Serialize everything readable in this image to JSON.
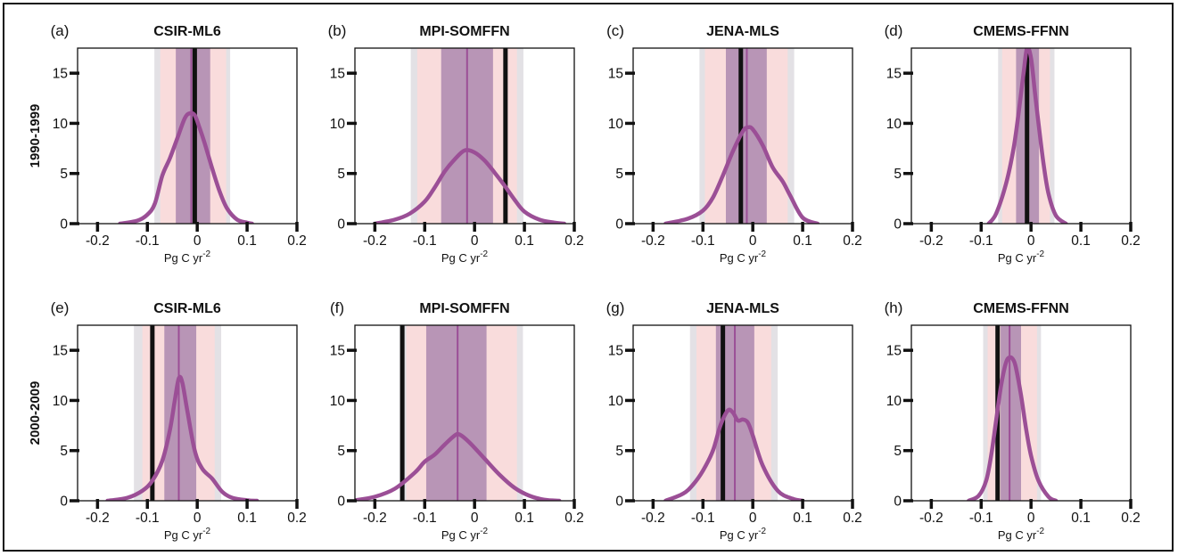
{
  "colors": {
    "curve": "#9b4f96",
    "inner_band": "#b895b6",
    "outer_band": "#f9dcdc",
    "outer_band_grey": "#e3e1e5",
    "obs_line": "#111111",
    "median_line": "#9b4f96"
  },
  "row_labels": [
    "1990-1999",
    "2000-2009"
  ],
  "x_axis_label": {
    "text": "Pg C yr",
    "exp": "-2"
  },
  "chart_data": [
    {
      "type": "area",
      "panel_label": "(a)",
      "title": "CSIR-ML6",
      "row": 0,
      "col": 0,
      "xlim": [
        -0.24,
        0.2
      ],
      "ylim": [
        0,
        17.5
      ],
      "xticks": [
        -0.2,
        -0.1,
        0,
        0.1,
        0.2
      ],
      "xtick_labels": [
        "-0.2",
        "-0.1",
        "0",
        "0.1",
        "0.2"
      ],
      "yticks": [
        0,
        5,
        10,
        15
      ],
      "ytick_labels": [
        "0",
        "5",
        "10",
        "15"
      ],
      "grey_band": [
        -0.086,
        0.066
      ],
      "pink_band": [
        -0.074,
        0.058
      ],
      "inner_band": [
        -0.043,
        0.026
      ],
      "median": -0.012,
      "observed": -0.005,
      "curve": {
        "x": [
          -0.155,
          -0.12,
          -0.1,
          -0.085,
          -0.07,
          -0.055,
          -0.04,
          -0.025,
          -0.015,
          -0.005,
          0.005,
          0.015,
          0.03,
          0.045,
          0.06,
          0.08,
          0.1,
          0.11
        ],
        "y": [
          0,
          0.3,
          0.9,
          2.0,
          4.8,
          6.5,
          8.5,
          10.5,
          11.0,
          10.8,
          9.5,
          8.0,
          5.5,
          3.2,
          1.5,
          0.4,
          0.1,
          0
        ]
      }
    },
    {
      "type": "area",
      "panel_label": "(b)",
      "title": "MPI-SOMFFN",
      "row": 0,
      "col": 1,
      "xlim": [
        -0.24,
        0.2
      ],
      "ylim": [
        0,
        17.5
      ],
      "xticks": [
        -0.2,
        -0.1,
        0,
        0.1,
        0.2
      ],
      "xtick_labels": [
        "-0.2",
        "-0.1",
        "0",
        "0.1",
        "0.2"
      ],
      "yticks": [
        0,
        5,
        10,
        15
      ],
      "ytick_labels": [
        "0",
        "5",
        "10",
        "15"
      ],
      "grey_band": [
        -0.128,
        0.098
      ],
      "pink_band": [
        -0.115,
        0.085
      ],
      "inner_band": [
        -0.067,
        0.037
      ],
      "median": -0.015,
      "observed": 0.062,
      "curve": {
        "x": [
          -0.2,
          -0.16,
          -0.13,
          -0.1,
          -0.08,
          -0.06,
          -0.04,
          -0.02,
          0,
          0.02,
          0.04,
          0.06,
          0.08,
          0.1,
          0.13,
          0.16,
          0.18
        ],
        "y": [
          0,
          0.4,
          1.0,
          2.2,
          3.6,
          5.2,
          6.4,
          7.3,
          7.1,
          6.3,
          5.1,
          3.8,
          2.4,
          1.2,
          0.4,
          0.1,
          0
        ]
      }
    },
    {
      "type": "area",
      "panel_label": "(c)",
      "title": "JENA-MLS",
      "row": 0,
      "col": 2,
      "xlim": [
        -0.24,
        0.2
      ],
      "ylim": [
        0,
        17.5
      ],
      "xticks": [
        -0.2,
        -0.1,
        0,
        0.1,
        0.2
      ],
      "xtick_labels": [
        "-0.2",
        "-0.1",
        "0",
        "0.1",
        "0.2"
      ],
      "yticks": [
        0,
        5,
        10,
        15
      ],
      "ytick_labels": [
        "0",
        "5",
        "10",
        "15"
      ],
      "grey_band": [
        -0.107,
        0.083
      ],
      "pink_band": [
        -0.096,
        0.07
      ],
      "inner_band": [
        -0.054,
        0.028
      ],
      "median": -0.012,
      "observed": -0.024,
      "curve": {
        "x": [
          -0.175,
          -0.13,
          -0.1,
          -0.08,
          -0.06,
          -0.04,
          -0.02,
          -0.01,
          0,
          0.02,
          0.04,
          0.06,
          0.075,
          0.1,
          0.13
        ],
        "y": [
          0,
          0.5,
          1.3,
          2.6,
          4.8,
          7.2,
          9.2,
          9.6,
          9.4,
          7.8,
          5.6,
          4.2,
          2.8,
          0.6,
          0
        ]
      }
    },
    {
      "type": "area",
      "panel_label": "(d)",
      "title": "CMEMS-FFNN",
      "row": 0,
      "col": 3,
      "xlim": [
        -0.24,
        0.2
      ],
      "ylim": [
        0,
        17.5
      ],
      "xticks": [
        -0.2,
        -0.1,
        0,
        0.1,
        0.2
      ],
      "xtick_labels": [
        "-0.2",
        "-0.1",
        "0",
        "0.1",
        "0.2"
      ],
      "yticks": [
        0,
        5,
        10,
        15
      ],
      "ytick_labels": [
        "0",
        "5",
        "10",
        "15"
      ],
      "grey_band": [
        -0.066,
        0.047
      ],
      "pink_band": [
        -0.058,
        0.038
      ],
      "inner_band": [
        -0.03,
        0.016
      ],
      "median": -0.008,
      "observed": -0.008,
      "curve": {
        "x": [
          -0.085,
          -0.07,
          -0.05,
          -0.035,
          -0.025,
          -0.015,
          -0.008,
          0,
          0.008,
          0.015,
          0.025,
          0.035,
          0.05,
          0.07
        ],
        "y": [
          0,
          1.0,
          4.0,
          7.5,
          11.0,
          15.0,
          17.6,
          16.5,
          13.0,
          10.0,
          6.0,
          3.0,
          0.8,
          0
        ]
      }
    },
    {
      "type": "area",
      "panel_label": "(e)",
      "title": "CSIR-ML6",
      "row": 1,
      "col": 0,
      "xlim": [
        -0.24,
        0.2
      ],
      "ylim": [
        0,
        17.5
      ],
      "xticks": [
        -0.2,
        -0.1,
        0,
        0.1,
        0.2
      ],
      "xtick_labels": [
        "-0.2",
        "-0.1",
        "0",
        "0.1",
        "0.2"
      ],
      "yticks": [
        0,
        5,
        10,
        15
      ],
      "ytick_labels": [
        "0",
        "5",
        "10",
        "15"
      ],
      "grey_band": [
        -0.127,
        0.048
      ],
      "pink_band": [
        -0.11,
        0.035
      ],
      "inner_band": [
        -0.066,
        -0.002
      ],
      "median": -0.037,
      "observed": -0.09,
      "curve": {
        "x": [
          -0.18,
          -0.14,
          -0.11,
          -0.09,
          -0.07,
          -0.055,
          -0.045,
          -0.037,
          -0.03,
          -0.02,
          -0.005,
          0.01,
          0.03,
          0.05,
          0.07,
          0.1,
          0.12
        ],
        "y": [
          0,
          0.3,
          1.0,
          2.0,
          4.0,
          7.0,
          10.0,
          12.2,
          11.8,
          9.0,
          5.0,
          3.2,
          2.2,
          0.9,
          0.3,
          0.05,
          0
        ]
      }
    },
    {
      "type": "area",
      "panel_label": "(f)",
      "title": "MPI-SOMFFN",
      "row": 1,
      "col": 1,
      "xlim": [
        -0.24,
        0.2
      ],
      "ylim": [
        0,
        17.5
      ],
      "xticks": [
        -0.2,
        -0.1,
        0,
        0.1,
        0.2
      ],
      "xtick_labels": [
        "-0.2",
        "-0.1",
        "0",
        "0.1",
        "0.2"
      ],
      "yticks": [
        0,
        5,
        10,
        15
      ],
      "ytick_labels": [
        "0",
        "5",
        "10",
        "15"
      ],
      "grey_band": [
        -0.15,
        0.097
      ],
      "pink_band": [
        -0.137,
        0.085
      ],
      "inner_band": [
        -0.097,
        0.024
      ],
      "median": -0.034,
      "observed": -0.145,
      "curve": {
        "x": [
          -0.24,
          -0.2,
          -0.16,
          -0.12,
          -0.1,
          -0.08,
          -0.06,
          -0.04,
          -0.03,
          -0.01,
          0.02,
          0.05,
          0.08,
          0.11,
          0.14,
          0.17
        ],
        "y": [
          0.05,
          0.4,
          1.2,
          2.8,
          3.9,
          4.6,
          5.6,
          6.5,
          6.6,
          5.8,
          4.2,
          2.6,
          1.3,
          0.5,
          0.1,
          0
        ]
      }
    },
    {
      "type": "area",
      "panel_label": "(g)",
      "title": "JENA-MLS",
      "row": 1,
      "col": 2,
      "xlim": [
        -0.24,
        0.2
      ],
      "ylim": [
        0,
        17.5
      ],
      "xticks": [
        -0.2,
        -0.1,
        0,
        0.1,
        0.2
      ],
      "xtick_labels": [
        "-0.2",
        "-0.1",
        "0",
        "0.1",
        "0.2"
      ],
      "yticks": [
        0,
        5,
        10,
        15
      ],
      "ytick_labels": [
        "0",
        "5",
        "10",
        "15"
      ],
      "grey_band": [
        -0.126,
        0.05
      ],
      "pink_band": [
        -0.113,
        0.037
      ],
      "inner_band": [
        -0.074,
        0.003
      ],
      "median": -0.036,
      "observed": -0.06,
      "curve": {
        "x": [
          -0.175,
          -0.14,
          -0.12,
          -0.1,
          -0.08,
          -0.065,
          -0.05,
          -0.04,
          -0.03,
          -0.02,
          -0.01,
          0,
          0.02,
          0.05,
          0.08,
          0.1
        ],
        "y": [
          0,
          0.7,
          1.6,
          3.0,
          5.0,
          7.5,
          9.0,
          8.8,
          8.0,
          8.1,
          7.8,
          6.5,
          3.5,
          1.0,
          0.2,
          0
        ]
      }
    },
    {
      "type": "area",
      "panel_label": "(h)",
      "title": "CMEMS-FFNN",
      "row": 1,
      "col": 3,
      "xlim": [
        -0.24,
        0.2
      ],
      "ylim": [
        0,
        17.5
      ],
      "xticks": [
        -0.2,
        -0.1,
        0,
        0.1,
        0.2
      ],
      "xtick_labels": [
        "-0.2",
        "-0.1",
        "0",
        "0.1",
        "0.2"
      ],
      "yticks": [
        0,
        5,
        10,
        15
      ],
      "ytick_labels": [
        "0",
        "5",
        "10",
        "15"
      ],
      "grey_band": [
        -0.096,
        0.02
      ],
      "pink_band": [
        -0.087,
        0.012
      ],
      "inner_band": [
        -0.061,
        -0.02
      ],
      "median": -0.043,
      "observed": -0.067,
      "curve": {
        "x": [
          -0.125,
          -0.105,
          -0.09,
          -0.08,
          -0.07,
          -0.06,
          -0.05,
          -0.042,
          -0.035,
          -0.03,
          -0.02,
          -0.01,
          0,
          0.015,
          0.035,
          0.05
        ],
        "y": [
          0,
          0.5,
          2.0,
          4.5,
          8.0,
          11.5,
          13.8,
          14.3,
          14.0,
          13.2,
          10.5,
          7.2,
          4.5,
          2.0,
          0.4,
          0
        ]
      }
    }
  ]
}
